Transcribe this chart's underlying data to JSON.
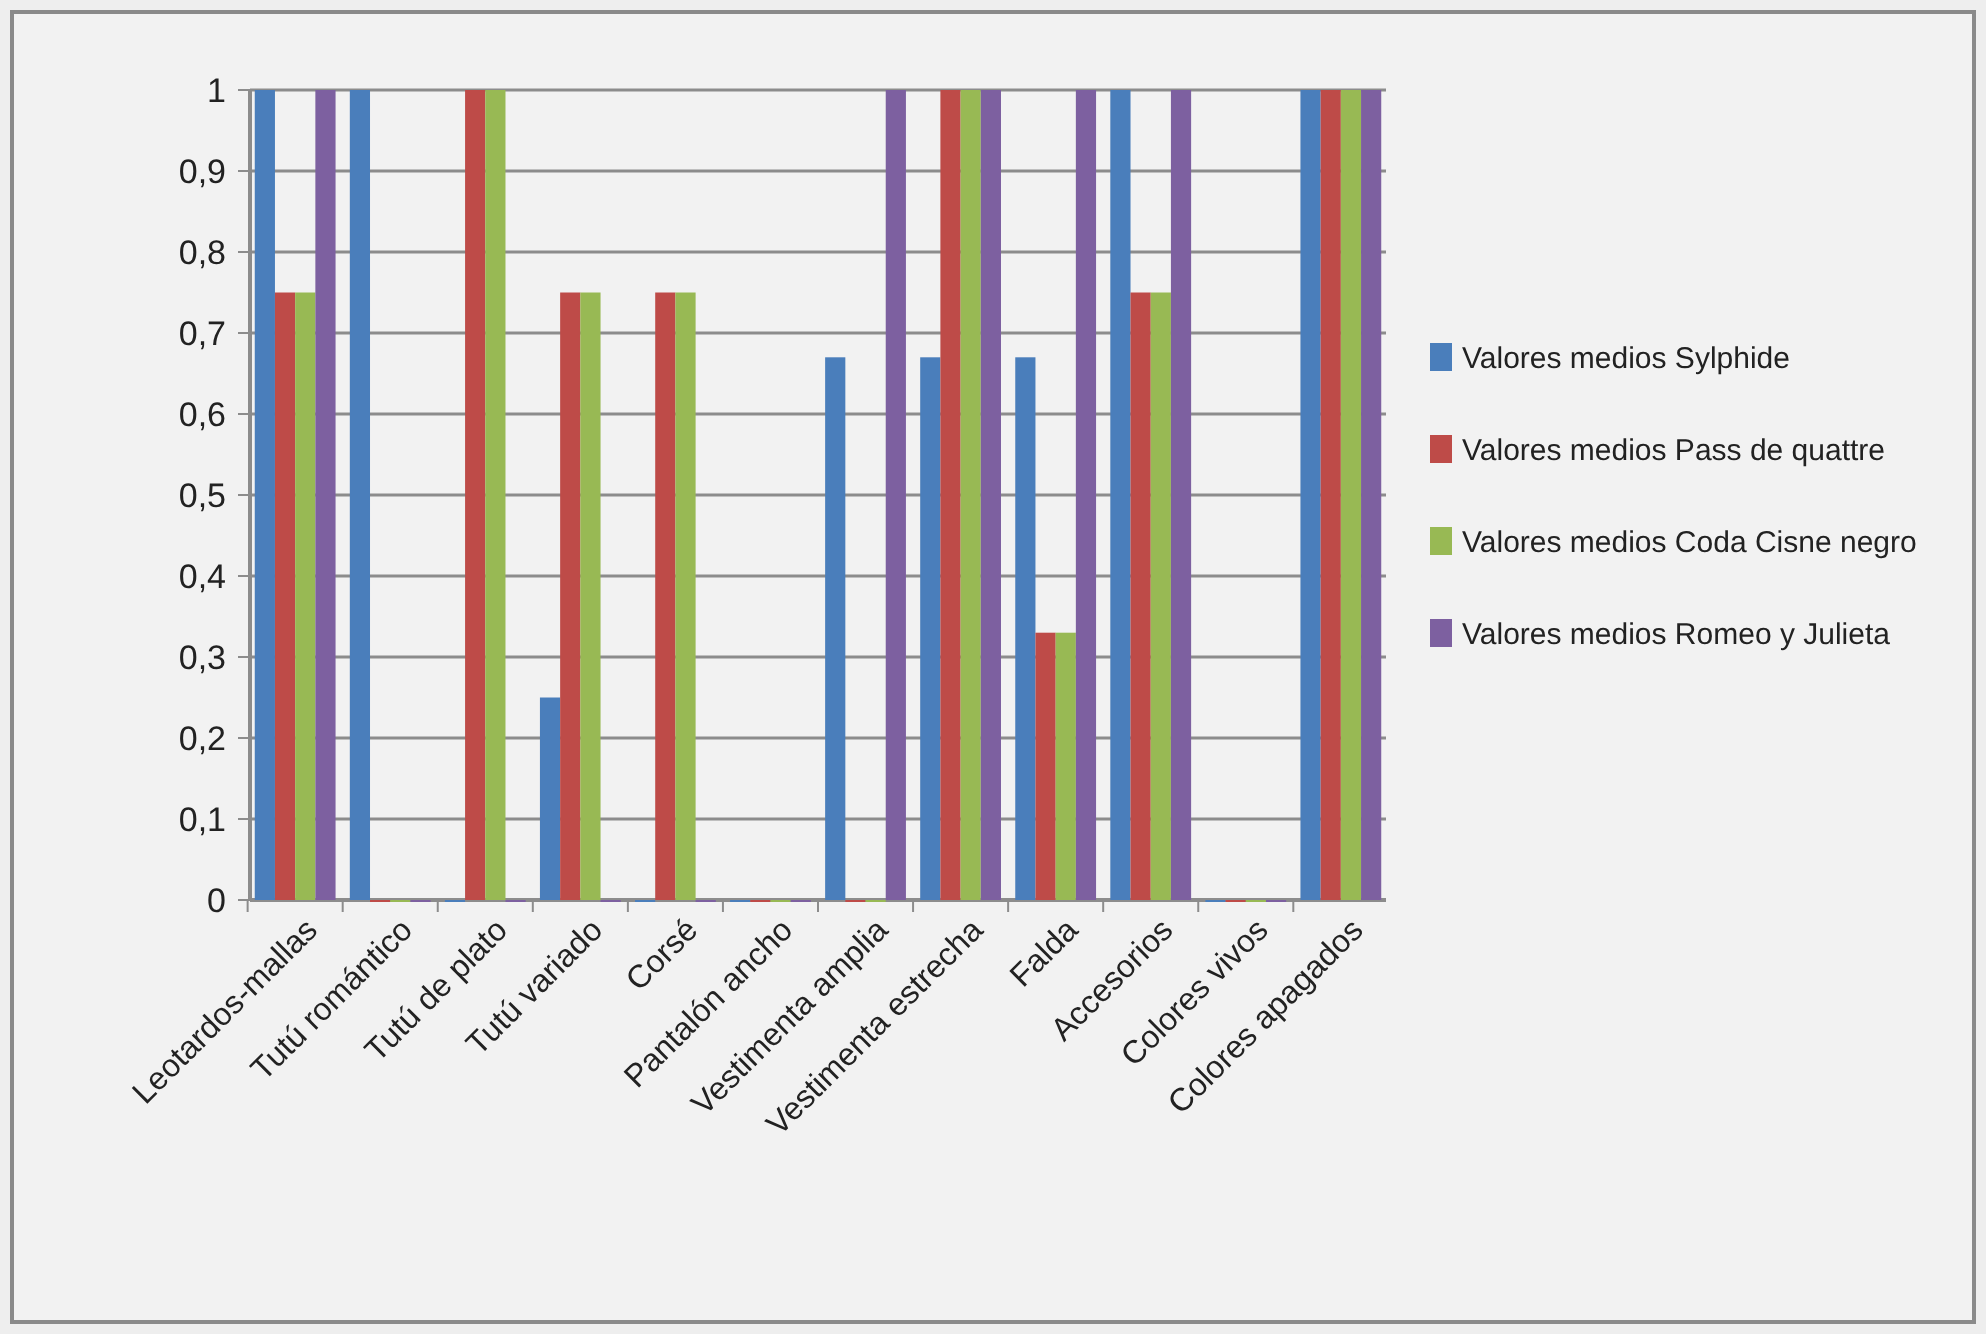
{
  "chart_data": {
    "type": "bar",
    "categories": [
      "Leotardos-mallas",
      "Tutú romántico",
      "Tutú de plato",
      "Tutú variado",
      "Corsé",
      "Pantalón ancho",
      "Vestimenta amplia",
      "Vestimenta estrecha",
      "Falda",
      "Accesorios",
      "Colores vivos",
      "Colores apagados"
    ],
    "series": [
      {
        "name": "Valores medios Sylphide",
        "color": "#4a7ebb",
        "values": [
          1,
          1,
          0,
          0.25,
          0,
          0,
          0.67,
          0.67,
          0.67,
          1,
          0,
          1
        ]
      },
      {
        "name": "Valores medios Pass de quattre",
        "color": "#be4b48",
        "values": [
          0.75,
          0,
          1,
          0.75,
          0.75,
          0,
          0,
          1,
          0.33,
          0.75,
          0,
          1
        ]
      },
      {
        "name": "Valores medios Coda Cisne negro",
        "color": "#98b954",
        "values": [
          0.75,
          0,
          1,
          0.75,
          0.75,
          0,
          0,
          1,
          0.33,
          0.75,
          0,
          1
        ]
      },
      {
        "name": "Valores medios Romeo y Julieta",
        "color": "#7d60a0",
        "values": [
          1,
          0,
          0,
          0,
          0,
          0,
          1,
          1,
          1,
          1,
          0,
          1
        ]
      }
    ],
    "ylim": [
      0,
      1
    ],
    "yticks": [
      0,
      {
        "value": 0.1,
        "label": "0,1"
      },
      {
        "value": 0.2,
        "label": "0,2"
      },
      {
        "value": 0.3,
        "label": "0,3"
      },
      {
        "value": 0.4,
        "label": "0,4"
      },
      {
        "value": 0.5,
        "label": "0,5"
      },
      {
        "value": 0.6,
        "label": "0,6"
      },
      {
        "value": 0.7,
        "label": "0,7"
      },
      {
        "value": 0.8,
        "label": "0,8"
      },
      {
        "value": 0.9,
        "label": "0,9"
      },
      1
    ],
    "grid": "y",
    "legend": "right"
  }
}
